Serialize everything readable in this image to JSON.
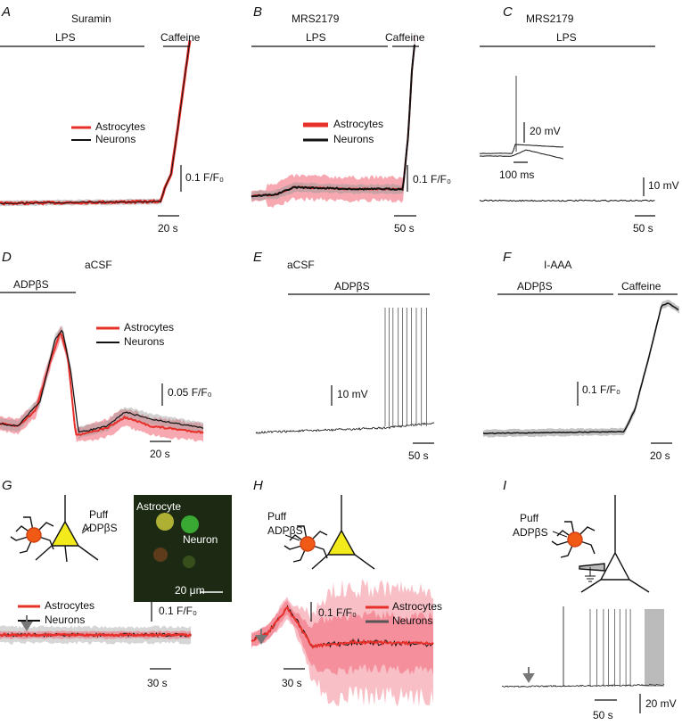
{
  "panels": [
    {
      "label": "A",
      "title": "Suramin",
      "bars": [
        "LPS",
        "Caffeine"
      ],
      "legend": [
        "Astrocytes",
        "Neurons"
      ],
      "scale": [
        "0.1 F/F₀",
        "20 s"
      ]
    },
    {
      "label": "B",
      "title": "MRS2179",
      "bars": [
        "LPS",
        "Caffeine"
      ],
      "legend": [
        "Astrocytes",
        "Neurons"
      ],
      "scale": [
        "0.1 F/F₀",
        "50 s"
      ]
    },
    {
      "label": "C",
      "title": "MRS2179",
      "bars": [
        "LPS"
      ],
      "scale": [
        "20 mV",
        "100 ms",
        "10 mV",
        "50 s"
      ]
    },
    {
      "label": "D",
      "title": "aCSF",
      "bars": [
        "ADPβS"
      ],
      "legend": [
        "Astrocytes",
        "Neurons"
      ],
      "scale": [
        "0.05 F/F₀",
        "20 s"
      ]
    },
    {
      "label": "E",
      "title": "aCSF",
      "bars": [
        "ADPβS"
      ],
      "scale": [
        "10 mV",
        "50 s"
      ]
    },
    {
      "label": "F",
      "title": "I-AAA",
      "bars": [
        "ADPβS",
        "Caffeine"
      ],
      "scale": [
        "0.1 F/F₀",
        "20 s"
      ]
    },
    {
      "label": "G",
      "puff": [
        "Puff",
        "ADPβS"
      ],
      "image_labels": [
        "Astrocyte",
        "Neuron",
        "20 μm"
      ],
      "legend": [
        "Astrocytes",
        "Neurons"
      ],
      "scale": [
        "0.1 F/F₀",
        "30 s"
      ]
    },
    {
      "label": "H",
      "puff": [
        "Puff",
        "ADPβS"
      ],
      "legend": [
        "Astrocytes",
        "Neurons"
      ],
      "scale": [
        "0.1 F/F₀",
        "30 s"
      ]
    },
    {
      "label": "I",
      "puff": [
        "Puff",
        "ADPβS"
      ],
      "scale": [
        "20 mV",
        "50 s"
      ]
    }
  ]
}
